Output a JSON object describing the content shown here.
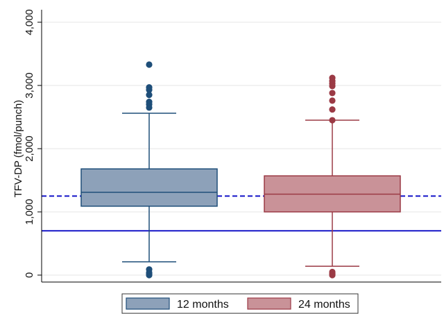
{
  "chart_data": {
    "type": "box",
    "title": "",
    "xlabel": "",
    "ylabel": "TFV-DP (fmol/punch)",
    "ylim": [
      0,
      4000
    ],
    "yticks": [
      0,
      1000,
      2000,
      3000,
      4000
    ],
    "ytick_labels": [
      "0",
      "1,000",
      "2,000",
      "3,000",
      "4,000"
    ],
    "grid": true,
    "legend_position": "bottom",
    "series": [
      {
        "name": "12 months",
        "color": "#8DA1B9",
        "edge_color": "#1E4E79",
        "whisker_low": 210,
        "q1": 1090,
        "median": 1310,
        "q3": 1680,
        "whisker_high": 2560,
        "outliers": [
          0,
          20,
          40,
          90,
          2650,
          2700,
          2740,
          2850,
          2930,
          2970,
          3330
        ]
      },
      {
        "name": "24 months",
        "color": "#C99298",
        "edge_color": "#9B3A45",
        "whisker_low": 140,
        "q1": 1000,
        "median": 1280,
        "q3": 1570,
        "whisker_high": 2450,
        "outliers": [
          0,
          20,
          50,
          2450,
          2620,
          2760,
          2880,
          2990,
          3030,
          3070,
          3120
        ]
      }
    ],
    "reference_lines": [
      {
        "value": 1250,
        "style": "dashed",
        "color": "#1515C8"
      },
      {
        "value": 700,
        "style": "solid",
        "color": "#1515C8"
      }
    ]
  }
}
